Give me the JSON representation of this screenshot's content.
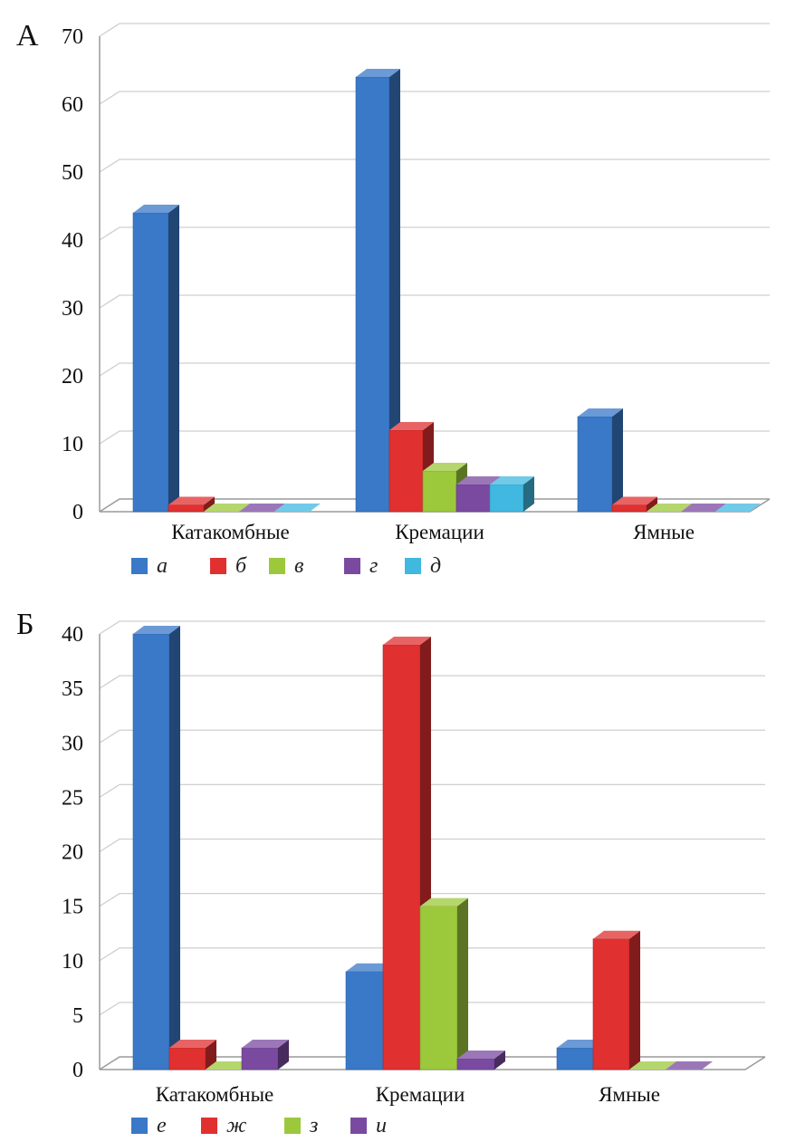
{
  "chart_data": [
    {
      "type": "bar",
      "panel_label": "А",
      "categories": [
        "Катакомбные",
        "Кремации",
        "Ямные"
      ],
      "series": [
        {
          "name": "а",
          "color": "#3a78c8",
          "values": [
            44,
            64,
            14
          ]
        },
        {
          "name": "б",
          "color": "#e03030",
          "values": [
            1,
            12,
            1
          ]
        },
        {
          "name": "в",
          "color": "#9cc83c",
          "values": [
            0,
            6,
            0
          ]
        },
        {
          "name": "г",
          "color": "#7a4aa0",
          "values": [
            0,
            4,
            0
          ]
        },
        {
          "name": "д",
          "color": "#40b8e0",
          "values": [
            0,
            4,
            0
          ]
        }
      ],
      "yticks": [
        "0",
        "10",
        "20",
        "30",
        "40",
        "50",
        "60",
        "70"
      ],
      "ylim": [
        0,
        70
      ],
      "grid": true,
      "legend": "bottom"
    },
    {
      "type": "bar",
      "panel_label": "Б",
      "categories": [
        "Катакомбные",
        "Кремации",
        "Ямные"
      ],
      "series": [
        {
          "name": "е",
          "color": "#3a78c8",
          "values": [
            40,
            9,
            2
          ]
        },
        {
          "name": "ж",
          "color": "#e03030",
          "values": [
            2,
            39,
            12
          ]
        },
        {
          "name": "з",
          "color": "#9cc83c",
          "values": [
            0,
            15,
            0
          ]
        },
        {
          "name": "и",
          "color": "#7a4aa0",
          "values": [
            2,
            1,
            0
          ]
        }
      ],
      "yticks": [
        "0",
        "5",
        "10",
        "15",
        "20",
        "25",
        "30",
        "35",
        "40"
      ],
      "ylim": [
        0,
        40
      ],
      "grid": true,
      "legend": "bottom"
    }
  ]
}
